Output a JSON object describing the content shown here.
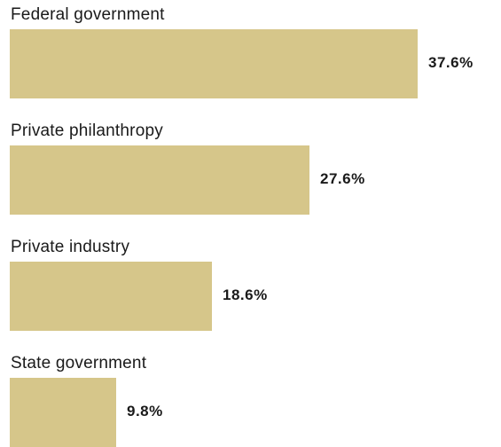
{
  "chart_data": {
    "type": "bar",
    "orientation": "horizontal",
    "categories": [
      "Federal government",
      "Private philanthropy",
      "Private industry",
      "State government"
    ],
    "values": [
      37.6,
      27.6,
      18.6,
      9.8
    ],
    "value_labels": [
      "37.6%",
      "27.6%",
      "18.6%",
      "9.8%"
    ],
    "unit": "%",
    "xlim": [
      0,
      37.6
    ],
    "bar_color": "#d6c68a",
    "grid": false,
    "legend": "none"
  }
}
